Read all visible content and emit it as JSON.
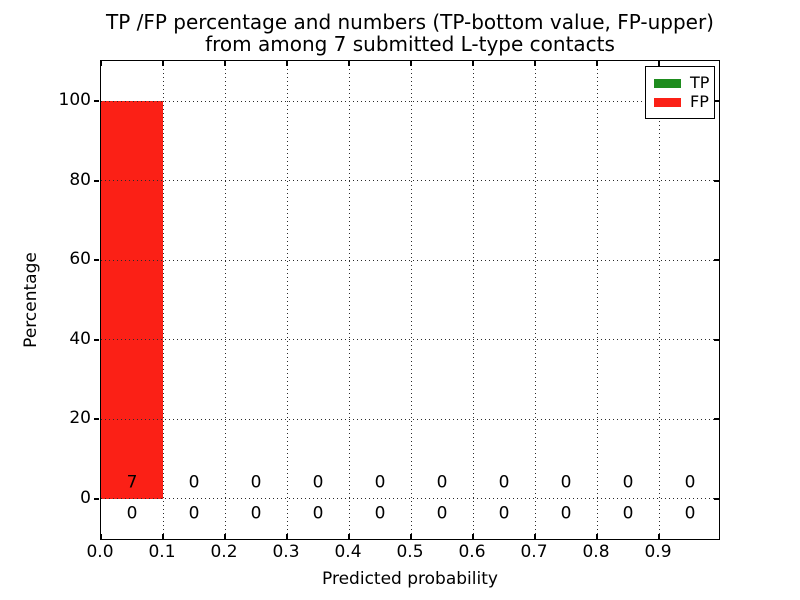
{
  "chart_data": {
    "type": "bar",
    "title_line1": "TP /FP percentage and numbers (TP-bottom value, FP-upper)",
    "title_line2": "from among 7 submitted L-type contacts",
    "xlabel": "Predicted probability",
    "ylabel": "Percentage",
    "bin_width": 0.1,
    "bin_starts": [
      0.0,
      0.1,
      0.2,
      0.3,
      0.4,
      0.5,
      0.6,
      0.7,
      0.8,
      0.9
    ],
    "x_tick_values": [
      0.0,
      0.1,
      0.2,
      0.3,
      0.4,
      0.5,
      0.6,
      0.7,
      0.8,
      0.9
    ],
    "x_tick_labels": [
      "0.0",
      "0.1",
      "0.2",
      "0.3",
      "0.4",
      "0.5",
      "0.6",
      "0.7",
      "0.8",
      "0.9"
    ],
    "y_tick_values": [
      0,
      20,
      40,
      60,
      80,
      100
    ],
    "y_tick_labels": [
      "0",
      "20",
      "40",
      "60",
      "80",
      "100"
    ],
    "xlim": [
      0.0,
      1.0
    ],
    "ylim": [
      -10.7,
      110.2
    ],
    "grid": true,
    "grid_style": "dotted",
    "legend_position": "upper right",
    "series": [
      {
        "name": "TP",
        "color": "#1e8c1e",
        "stack_order": "bottom",
        "percent_values": [
          0,
          0,
          0,
          0,
          0,
          0,
          0,
          0,
          0,
          0
        ],
        "counts": [
          0,
          0,
          0,
          0,
          0,
          0,
          0,
          0,
          0,
          0
        ],
        "count_row": "lower"
      },
      {
        "name": "FP",
        "color": "#fb2016",
        "stack_order": "upper",
        "percent_values": [
          100,
          0,
          0,
          0,
          0,
          0,
          0,
          0,
          0,
          0
        ],
        "counts": [
          7,
          0,
          0,
          0,
          0,
          0,
          0,
          0,
          0,
          0
        ],
        "count_row": "upper"
      }
    ]
  }
}
